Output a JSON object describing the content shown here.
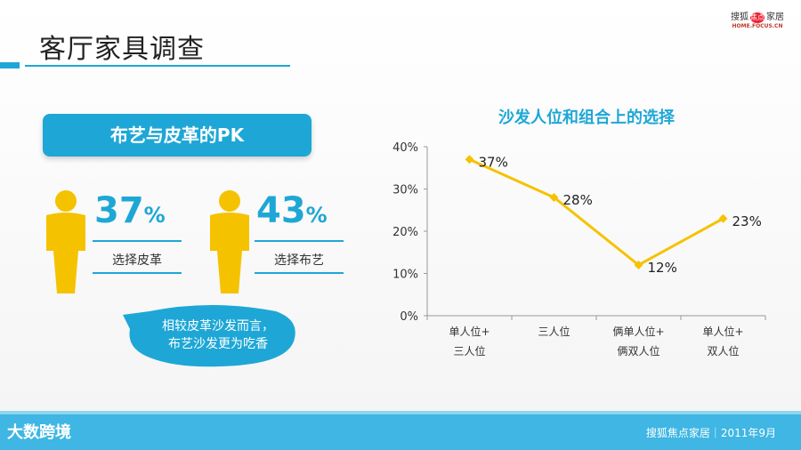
{
  "header": {
    "title": "客厅家具调查",
    "logo_cn_left": "搜狐",
    "logo_cn_mid": "焦点",
    "logo_cn_right": "家居",
    "logo_en": "HOME.FOCUS.CN"
  },
  "pk": {
    "title": "布艺与皮革的PK",
    "leather_pct": "37",
    "leather_label": "选择皮革",
    "fabric_pct": "43",
    "fabric_label": "选择布艺",
    "percent_sign": "%"
  },
  "bubble": {
    "line1": "相较皮革沙发而言，",
    "line2": "布艺沙发更为吃香"
  },
  "colors": {
    "accent": "#1ea7d6",
    "line": "#f5c200"
  },
  "chart_data": {
    "type": "line",
    "title": "沙发人位和组合上的选择",
    "categories": [
      [
        "单人位+",
        "三人位"
      ],
      [
        "三人位",
        ""
      ],
      [
        "俩单人位+",
        "俩双人位"
      ],
      [
        "单人位+",
        "双人位"
      ]
    ],
    "values": [
      37,
      28,
      12,
      23
    ],
    "data_labels": [
      "37%",
      "28%",
      "12%",
      "23%"
    ],
    "ylim": [
      0,
      40
    ],
    "yticks": [
      "0%",
      "10%",
      "20%",
      "30%",
      "40%"
    ],
    "grid": false
  },
  "footer": {
    "brand": "大数跨境",
    "right": "搜狐焦点家居｜2011年9月"
  }
}
